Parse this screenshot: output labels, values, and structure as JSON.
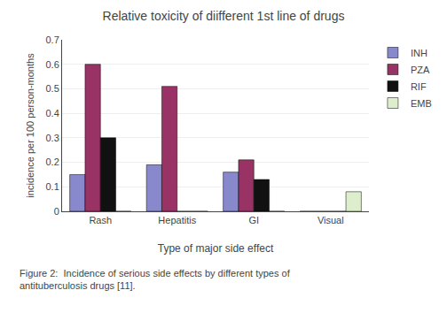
{
  "chart_data": {
    "type": "bar",
    "title": "Relative toxicity of diifferent 1st line of drugs",
    "xlabel": "Type of major side effect",
    "ylabel": "incidence per 100 person-months",
    "categories": [
      "Rash",
      "Hepatitis",
      "GI",
      "Visual"
    ],
    "series": [
      {
        "name": "INH",
        "color": "#8888cc",
        "values": [
          0.15,
          0.19,
          0.16,
          0.0
        ]
      },
      {
        "name": "PZA",
        "color": "#993366",
        "values": [
          0.6,
          0.51,
          0.21,
          0.0
        ]
      },
      {
        "name": "RIF",
        "color": "#111111",
        "values": [
          0.3,
          0.0,
          0.13,
          0.0
        ]
      },
      {
        "name": "EMB",
        "color": "#ddeecc",
        "values": [
          0.0,
          0.0,
          0.0,
          0.08
        ]
      }
    ],
    "ylim": [
      0,
      0.7
    ],
    "yticks": [
      0,
      0.1,
      0.2,
      0.3,
      0.4,
      0.5,
      0.6,
      0.7
    ],
    "grid": true,
    "legend": "right",
    "annotations": [
      "Figure 2:  Incidence of serious side effects by different types of\nantituberculosis drugs [11]."
    ]
  }
}
